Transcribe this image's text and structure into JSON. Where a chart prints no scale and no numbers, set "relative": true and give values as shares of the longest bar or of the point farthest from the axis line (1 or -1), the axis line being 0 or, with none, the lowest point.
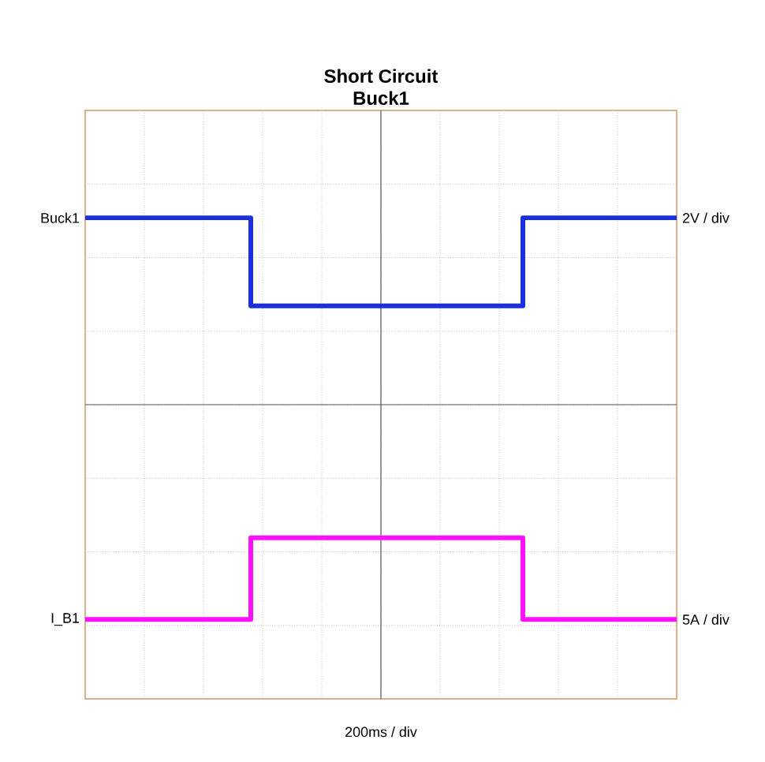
{
  "chart_data": {
    "type": "step",
    "title": "Short Circuit",
    "subtitle": "Buck1",
    "relative": true,
    "grid": true,
    "annotations": [
      "2V / div",
      "5A / div",
      "200ms / div"
    ],
    "categories": [
      null,
      null,
      null,
      null,
      null,
      null,
      null,
      null,
      null,
      null,
      null,
      null,
      null,
      null,
      null,
      null,
      null,
      null,
      null,
      null,
      null,
      null,
      null,
      null,
      null,
      null,
      null,
      null,
      null,
      null,
      null,
      null,
      null,
      null,
      null,
      null,
      null,
      null,
      null,
      null,
      null,
      null,
      null,
      null,
      null,
      null,
      null,
      null,
      null,
      null,
      null
    ],
    "series": [
      {
        "name": "Buck1",
        "color": "#1a2fe0",
        "values": [
          0.87,
          0.87,
          0.87,
          0.87,
          0.87,
          0.87,
          0.87,
          0.87,
          0.87,
          0.87,
          0.87,
          0.87,
          0.87,
          0.87,
          0.46,
          0.46,
          0.46,
          0.46,
          0.46,
          0.46,
          0.46,
          0.46,
          0.46,
          0.46,
          0.46,
          0.46,
          0.46,
          0.46,
          0.46,
          0.46,
          0.46,
          0.46,
          0.46,
          0.46,
          0.46,
          0.46,
          0.46,
          0.87,
          0.87,
          0.87,
          0.87,
          0.87,
          0.87,
          0.87,
          0.87,
          0.87,
          0.87,
          0.87,
          0.87,
          0.87,
          0.87
        ]
      },
      {
        "name": "I_B1",
        "color": "#ff10ff",
        "values": [
          -1,
          -1,
          -1,
          -1,
          -1,
          -1,
          -1,
          -1,
          -1,
          -1,
          -1,
          -1,
          -1,
          -1,
          -0.62,
          -0.62,
          -0.62,
          -0.62,
          -0.62,
          -0.62,
          -0.62,
          -0.62,
          -0.62,
          -0.62,
          -0.62,
          -0.62,
          -0.62,
          -0.62,
          -0.62,
          -0.62,
          -0.62,
          -0.62,
          -0.62,
          -0.62,
          -0.62,
          -0.62,
          -0.62,
          -1,
          -1,
          -1,
          -1,
          -1,
          -1,
          -1,
          -1,
          -1,
          -1,
          -1,
          -1,
          -1,
          -1
        ]
      }
    ]
  }
}
